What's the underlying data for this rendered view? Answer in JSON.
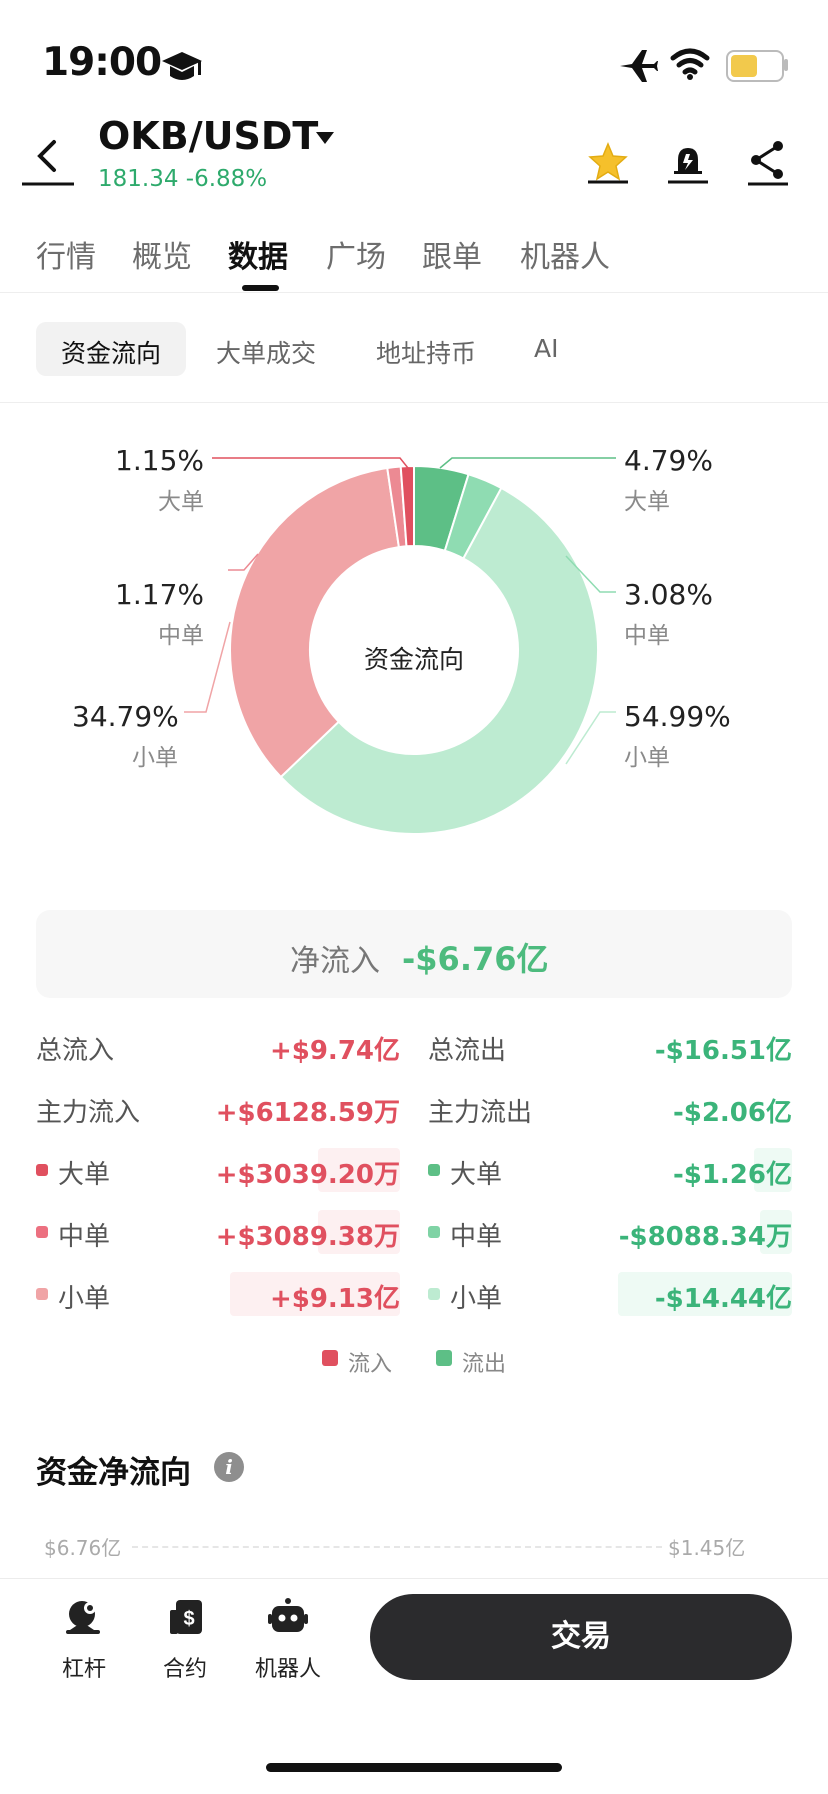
{
  "status_bar": {
    "time": "19:00"
  },
  "header": {
    "pair": "OKB/USDT",
    "price_change": "181.34 -6.88%"
  },
  "tabs": [
    "行情",
    "概览",
    "数据",
    "广场",
    "跟单",
    "机器人"
  ],
  "active_tab": "数据",
  "subtabs": {
    "active": "资金流向",
    "items": [
      "大单成交",
      "地址持币",
      "AI"
    ]
  },
  "donut": {
    "center_label": "资金流向",
    "inflow": {
      "large": {
        "pct": "1.15%",
        "label": "大单"
      },
      "medium": {
        "pct": "1.17%",
        "label": "中单"
      },
      "small": {
        "pct": "34.79%",
        "label": "小单"
      }
    },
    "outflow": {
      "large": {
        "pct": "4.79%",
        "label": "大单"
      },
      "medium": {
        "pct": "3.08%",
        "label": "中单"
      },
      "small": {
        "pct": "54.99%",
        "label": "小单"
      }
    },
    "colors": {
      "in_large": "#e0505f",
      "in_medium": "#ec8a93",
      "in_small": "#f0a4a6",
      "out_large": "#5dbf86",
      "out_medium": "#8fdcb2",
      "out_small": "#bdebd1"
    }
  },
  "net_inflow": {
    "label": "净流入",
    "value": "-$6.76亿"
  },
  "stats": {
    "total_in_label": "总流入",
    "total_in": "+$9.74亿",
    "total_out_label": "总流出",
    "total_out": "-$16.51亿",
    "main_in_label": "主力流入",
    "main_in": "+$6128.59万",
    "main_out_label": "主力流出",
    "main_out": "-$2.06亿",
    "rows": [
      {
        "in_label": "大单",
        "in_value": "+$3039.20万",
        "out_label": "大单",
        "out_value": "-$1.26亿"
      },
      {
        "in_label": "中单",
        "in_value": "+$3089.38万",
        "out_label": "中单",
        "out_value": "-$8088.34万"
      },
      {
        "in_label": "小单",
        "in_value": "+$9.13亿",
        "out_label": "小单",
        "out_value": "-$14.44亿"
      }
    ]
  },
  "legend": {
    "inflow": "流入",
    "outflow": "流出"
  },
  "net_flow_section": {
    "title": "资金净流向",
    "left_axis": "$6.76亿",
    "right_axis": "$1.45亿"
  },
  "bottom_bar": {
    "leverage": "杠杆",
    "contract": "合约",
    "bot": "机器人",
    "trade": "交易"
  }
}
